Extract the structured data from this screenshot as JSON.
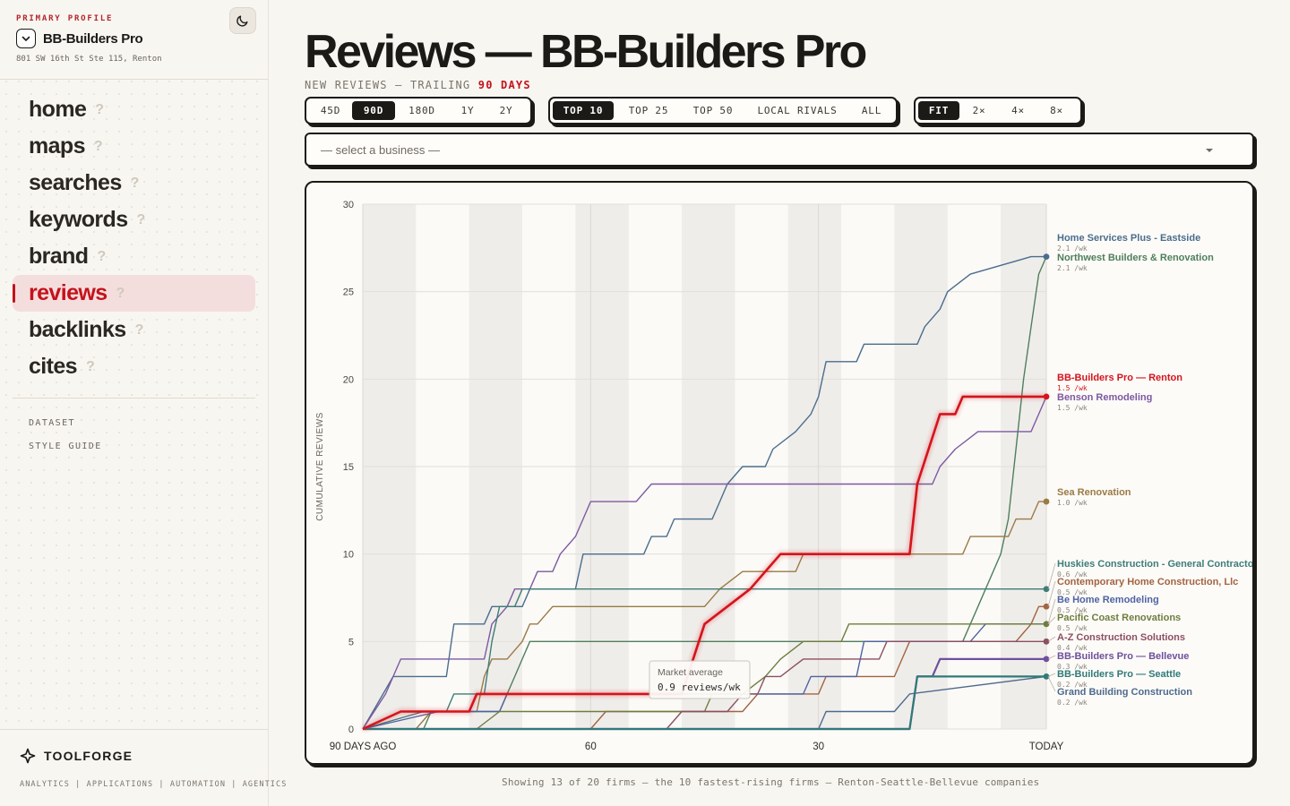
{
  "sidebar": {
    "kicker": "PRIMARY PROFILE",
    "profile_name": "BB-Builders Pro",
    "profile_address": "801 SW 16th St Ste 115, Renton",
    "nav": [
      {
        "label": "home",
        "q": "?"
      },
      {
        "label": "maps",
        "q": "?"
      },
      {
        "label": "searches",
        "q": "?"
      },
      {
        "label": "keywords",
        "q": "?"
      },
      {
        "label": "brand",
        "q": "?"
      },
      {
        "label": "reviews",
        "q": "?",
        "active": true
      },
      {
        "label": "backlinks",
        "q": "?"
      },
      {
        "label": "cites",
        "q": "?"
      }
    ],
    "sub_links": [
      "DATASET",
      "STYLE GUIDE"
    ],
    "brand": "TOOLFORGE",
    "brand_tagline": "ANALYTICS | APPLICATIONS | AUTOMATION | AGENTICS"
  },
  "header": {
    "title": "Reviews — BB-Builders Pro",
    "subtitle_prefix": "NEW REVIEWS — TRAILING ",
    "subtitle_highlight": "90 DAYS"
  },
  "controls": {
    "range": [
      "45D",
      "90D",
      "180D",
      "1Y",
      "2Y"
    ],
    "range_selected": "90D",
    "scope": [
      "TOP 10",
      "TOP 25",
      "TOP 50",
      "LOCAL RIVALS",
      "ALL"
    ],
    "scope_selected": "TOP 10",
    "zoom": [
      "FIT",
      "2×",
      "4×",
      "8×"
    ],
    "zoom_selected": "FIT",
    "select_placeholder": "— select a business —"
  },
  "footnote": "Showing 13 of 20 firms — the 10 fastest-rising firms — Renton-Seattle-Bellevue companies",
  "chart_data": {
    "type": "line",
    "ylabel": "CUMULATIVE REVIEWS",
    "ylim": [
      0,
      30
    ],
    "yticks": [
      0,
      5,
      10,
      15,
      20,
      25,
      30
    ],
    "xlim": [
      0,
      90
    ],
    "xticks": [
      {
        "x": 0,
        "label": "90 DAYS AGO"
      },
      {
        "x": 30,
        "label": "60"
      },
      {
        "x": 60,
        "label": "30"
      },
      {
        "x": 90,
        "label": "TODAY"
      }
    ],
    "x_unit": "days",
    "tooltip": {
      "label": "Market average",
      "value": "0.9 reviews/wk"
    },
    "series": [
      {
        "name": "Home Services Plus - Eastside",
        "rate": "2.1 /wk",
        "color": "#4a6d8c",
        "width": 1.4,
        "points": [
          [
            0,
            0
          ],
          [
            4,
            3
          ],
          [
            11,
            3
          ],
          [
            12,
            6
          ],
          [
            16,
            6
          ],
          [
            17,
            7
          ],
          [
            19,
            7
          ],
          [
            21,
            7
          ],
          [
            22,
            8
          ],
          [
            25,
            8
          ],
          [
            28,
            8
          ],
          [
            29,
            10
          ],
          [
            32,
            10
          ],
          [
            37,
            10
          ],
          [
            38,
            11
          ],
          [
            40,
            11
          ],
          [
            41,
            12
          ],
          [
            45,
            12
          ],
          [
            46,
            12
          ],
          [
            47,
            13
          ],
          [
            48,
            14
          ],
          [
            50,
            15
          ],
          [
            53,
            15
          ],
          [
            54,
            16
          ],
          [
            57,
            17
          ],
          [
            59,
            18
          ],
          [
            60,
            19
          ],
          [
            61,
            21
          ],
          [
            65,
            21
          ],
          [
            66,
            22
          ],
          [
            72,
            22
          ],
          [
            73,
            22
          ],
          [
            74,
            23
          ],
          [
            76,
            24
          ],
          [
            77,
            25
          ],
          [
            80,
            26
          ],
          [
            88,
            27
          ],
          [
            90,
            27
          ]
        ]
      },
      {
        "name": "Northwest Builders & Renovation",
        "rate": "2.1 /wk",
        "color": "#4f7f5c",
        "width": 1.4,
        "points": [
          [
            0,
            0
          ],
          [
            8,
            0
          ],
          [
            9,
            1
          ],
          [
            18,
            1
          ],
          [
            19,
            2
          ],
          [
            20,
            3
          ],
          [
            21,
            4
          ],
          [
            22,
            5
          ],
          [
            25,
            5
          ],
          [
            40,
            5
          ],
          [
            41,
            5
          ],
          [
            65,
            5
          ],
          [
            79,
            5
          ],
          [
            80,
            6
          ],
          [
            81,
            7
          ],
          [
            82,
            8
          ],
          [
            84,
            10
          ],
          [
            85,
            12
          ],
          [
            86,
            16
          ],
          [
            87,
            20
          ],
          [
            88,
            23
          ],
          [
            89,
            26
          ],
          [
            90,
            27
          ]
        ]
      },
      {
        "name": "BB-Builders Pro — Renton",
        "rate": "1.5 /wk",
        "color": "#d4141c",
        "width": 2.6,
        "points": [
          [
            0,
            0
          ],
          [
            5,
            1
          ],
          [
            14,
            1
          ],
          [
            15,
            2
          ],
          [
            34,
            2
          ],
          [
            42,
            2
          ],
          [
            45,
            6
          ],
          [
            48,
            7
          ],
          [
            51,
            8
          ],
          [
            53,
            9
          ],
          [
            55,
            10
          ],
          [
            57,
            10
          ],
          [
            72,
            10
          ],
          [
            73,
            14
          ],
          [
            76,
            18
          ],
          [
            78,
            18
          ],
          [
            79,
            19
          ],
          [
            90,
            19
          ]
        ]
      },
      {
        "name": "Benson Remodeling",
        "rate": "1.5 /wk",
        "color": "#7d59a1",
        "width": 1.4,
        "points": [
          [
            0,
            0
          ],
          [
            3,
            2
          ],
          [
            4,
            3
          ],
          [
            5,
            4
          ],
          [
            12,
            4
          ],
          [
            16,
            4
          ],
          [
            17,
            6
          ],
          [
            19,
            7
          ],
          [
            20,
            8
          ],
          [
            22,
            8
          ],
          [
            23,
            9
          ],
          [
            25,
            9
          ],
          [
            26,
            10
          ],
          [
            28,
            11
          ],
          [
            29,
            12
          ],
          [
            30,
            13
          ],
          [
            36,
            13
          ],
          [
            38,
            14
          ],
          [
            62,
            14
          ],
          [
            75,
            14
          ],
          [
            76,
            15
          ],
          [
            78,
            16
          ],
          [
            81,
            17
          ],
          [
            88,
            17
          ],
          [
            89,
            18
          ],
          [
            90,
            19
          ]
        ]
      },
      {
        "name": "Sea Renovation",
        "rate": "1.0 /wk",
        "color": "#9b7a45",
        "width": 1.4,
        "points": [
          [
            0,
            0
          ],
          [
            7,
            0
          ],
          [
            9,
            1
          ],
          [
            15,
            1
          ],
          [
            16,
            3
          ],
          [
            17,
            4
          ],
          [
            19,
            4
          ],
          [
            21,
            5
          ],
          [
            22,
            6
          ],
          [
            23,
            6
          ],
          [
            25,
            7
          ],
          [
            35,
            7
          ],
          [
            40,
            7
          ],
          [
            45,
            7
          ],
          [
            47,
            8
          ],
          [
            50,
            9
          ],
          [
            57,
            9
          ],
          [
            58,
            10
          ],
          [
            62,
            10
          ],
          [
            79,
            10
          ],
          [
            80,
            11
          ],
          [
            85,
            11
          ],
          [
            86,
            12
          ],
          [
            88,
            12
          ],
          [
            89,
            13
          ],
          [
            90,
            13
          ]
        ]
      },
      {
        "name": "Huskies Construction - General Contractor",
        "rate": "0.6 /wk",
        "color": "#3e7d77",
        "width": 1.4,
        "points": [
          [
            0,
            0
          ],
          [
            8,
            1
          ],
          [
            11,
            1
          ],
          [
            12,
            2
          ],
          [
            16,
            2
          ],
          [
            17,
            5
          ],
          [
            18,
            7
          ],
          [
            20,
            7
          ],
          [
            21,
            8
          ],
          [
            25,
            8
          ],
          [
            90,
            8
          ]
        ]
      },
      {
        "name": "Contemporary Home Construction, Llc",
        "rate": "0.5 /wk",
        "color": "#a36340",
        "width": 1.4,
        "points": [
          [
            0,
            0
          ],
          [
            30,
            0
          ],
          [
            32,
            1
          ],
          [
            50,
            1
          ],
          [
            52,
            2
          ],
          [
            55,
            2
          ],
          [
            60,
            2
          ],
          [
            61,
            3
          ],
          [
            70,
            3
          ],
          [
            71,
            4
          ],
          [
            72,
            5
          ],
          [
            86,
            5
          ],
          [
            88,
            6
          ],
          [
            89,
            7
          ],
          [
            90,
            7
          ]
        ]
      },
      {
        "name": "Be Home Remodeling",
        "rate": "0.5 /wk",
        "color": "#4f63a3",
        "width": 1.4,
        "points": [
          [
            0,
            0
          ],
          [
            10,
            1
          ],
          [
            18,
            1
          ],
          [
            19,
            2
          ],
          [
            20,
            2
          ],
          [
            50,
            2
          ],
          [
            58,
            2
          ],
          [
            59,
            3
          ],
          [
            64,
            3
          ],
          [
            65,
            3
          ],
          [
            66,
            5
          ],
          [
            80,
            5
          ],
          [
            82,
            6
          ],
          [
            90,
            6
          ]
        ]
      },
      {
        "name": "Pacific Coast Renovations",
        "rate": "0.5 /wk",
        "color": "#6f7d3e",
        "width": 1.4,
        "points": [
          [
            0,
            0
          ],
          [
            15,
            0
          ],
          [
            18,
            1
          ],
          [
            45,
            1
          ],
          [
            46,
            2
          ],
          [
            50,
            2
          ],
          [
            53,
            3
          ],
          [
            55,
            4
          ],
          [
            58,
            5
          ],
          [
            63,
            5
          ],
          [
            64,
            6
          ],
          [
            90,
            6
          ]
        ]
      },
      {
        "name": "A-Z Construction Solutions",
        "rate": "0.4 /wk",
        "color": "#8c4f63",
        "width": 1.4,
        "points": [
          [
            0,
            0
          ],
          [
            40,
            0
          ],
          [
            42,
            1
          ],
          [
            48,
            1
          ],
          [
            50,
            2
          ],
          [
            52,
            2
          ],
          [
            53,
            3
          ],
          [
            55,
            3
          ],
          [
            58,
            4
          ],
          [
            68,
            4
          ],
          [
            69,
            5
          ],
          [
            90,
            5
          ]
        ]
      },
      {
        "name": "BB-Builders Pro — Bellevue",
        "rate": "0.3 /wk",
        "color": "#6f4f9c",
        "width": 2.2,
        "points": [
          [
            0,
            0
          ],
          [
            72,
            0
          ],
          [
            73,
            3
          ],
          [
            75,
            3
          ],
          [
            76,
            4
          ],
          [
            90,
            4
          ]
        ]
      },
      {
        "name": "BB-Builders Pro — Seattle",
        "rate": "0.2 /wk",
        "color": "#2f7a78",
        "width": 2.2,
        "points": [
          [
            0,
            0
          ],
          [
            72,
            0
          ],
          [
            73,
            3
          ],
          [
            90,
            3
          ]
        ]
      },
      {
        "name": "Grand Building Construction",
        "rate": "0.2 /wk",
        "color": "#4d6a8c",
        "width": 1.4,
        "points": [
          [
            0,
            0
          ],
          [
            60,
            0
          ],
          [
            61,
            1
          ],
          [
            70,
            1
          ],
          [
            72,
            2
          ],
          [
            90,
            3
          ]
        ]
      }
    ],
    "markers_last": [
      {
        "series": 0,
        "y": 27
      },
      {
        "series": 2,
        "y": 19
      },
      {
        "series": 4,
        "y": 13
      },
      {
        "series": 5,
        "y": 8
      },
      {
        "series": 6,
        "y": 7
      },
      {
        "series": 8,
        "y": 6
      },
      {
        "series": 9,
        "y": 5
      },
      {
        "series": 10,
        "y": 4
      },
      {
        "series": 11,
        "y": 3
      }
    ]
  }
}
